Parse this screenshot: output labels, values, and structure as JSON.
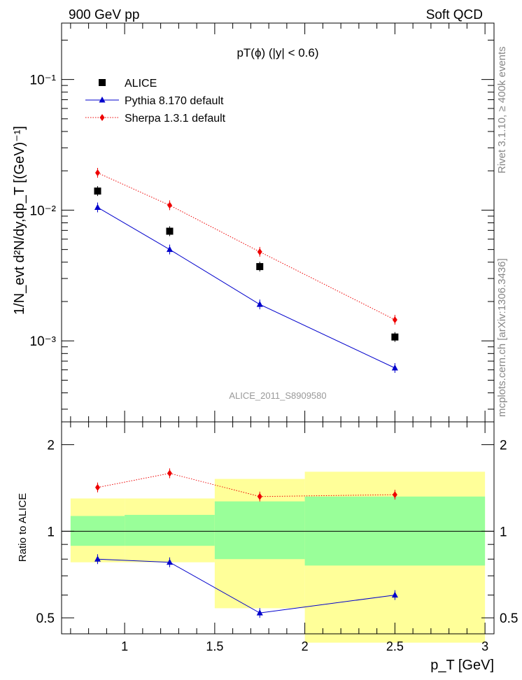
{
  "header": {
    "left": "900 GeV pp",
    "right": "Soft QCD"
  },
  "side_labels": {
    "upper": "Rivet 3.1.10, ≥ 400k events",
    "lower": "mcplots.cern.ch [arXiv:1306.3436]"
  },
  "watermark": "ALICE_2011_S8909580",
  "chart_data": [
    {
      "type": "line",
      "name": "main",
      "title": "pT(ϕ) (|y| < 0.6)",
      "ylabel": "1/N_evt d²N/dy,dp_T [(GeV)⁻¹]",
      "yscale": "log",
      "ylim": [
        0.00024,
        0.27
      ],
      "xlim": [
        0.65,
        3.05
      ],
      "y_ticks": [
        {
          "value": 0.001,
          "label": "10⁻³"
        },
        {
          "value": 0.01,
          "label": "10⁻²"
        },
        {
          "value": 0.1,
          "label": "10⁻¹"
        }
      ],
      "legend_position": "top-left",
      "series": [
        {
          "name": "ALICE",
          "marker": "square",
          "color": "#000000",
          "x": [
            0.85,
            1.25,
            1.75,
            2.5
          ],
          "y": [
            0.014,
            0.0069,
            0.0037,
            0.00107
          ]
        },
        {
          "name": "Pythia 8.170 default",
          "marker": "triangle",
          "color": "#0000cc",
          "line": "solid",
          "x": [
            0.85,
            1.25,
            1.75,
            2.5
          ],
          "y": [
            0.0105,
            0.005,
            0.0019,
            0.00062
          ]
        },
        {
          "name": "Sherpa 1.3.1 default",
          "marker": "diamond",
          "color": "#ee0000",
          "line": "dotted",
          "x": [
            0.85,
            1.25,
            1.75,
            2.5
          ],
          "y": [
            0.0193,
            0.0109,
            0.0048,
            0.00145
          ]
        }
      ]
    },
    {
      "type": "line",
      "name": "ratio",
      "ylabel": "Ratio to ALICE",
      "xlabel": "p_T [GeV]",
      "yscale": "log",
      "ylim": [
        0.44,
        2.4
      ],
      "xlim": [
        0.65,
        3.05
      ],
      "x_ticks": [
        {
          "value": 1,
          "label": "1"
        },
        {
          "value": 1.5,
          "label": "1.5"
        },
        {
          "value": 2,
          "label": "2"
        },
        {
          "value": 2.5,
          "label": "2.5"
        },
        {
          "value": 3,
          "label": "3"
        }
      ],
      "y_ticks": [
        {
          "value": 0.5,
          "label": "0.5"
        },
        {
          "value": 1,
          "label": "1"
        },
        {
          "value": 2,
          "label": "2"
        }
      ],
      "bands": [
        {
          "x0": 0.7,
          "x1": 1.0,
          "inner": [
            0.89,
            1.13
          ],
          "outer": [
            0.78,
            1.3
          ]
        },
        {
          "x0": 1.0,
          "x1": 1.5,
          "inner": [
            0.89,
            1.14
          ],
          "outer": [
            0.78,
            1.3
          ]
        },
        {
          "x0": 1.5,
          "x1": 2.0,
          "inner": [
            0.8,
            1.27
          ],
          "outer": [
            0.54,
            1.52
          ]
        },
        {
          "x0": 2.0,
          "x1": 3.0,
          "inner": [
            0.76,
            1.32
          ],
          "outer": [
            0.41,
            1.61
          ]
        }
      ],
      "series": [
        {
          "name": "Pythia 8.170 default",
          "marker": "triangle",
          "color": "#0000cc",
          "line": "solid",
          "x": [
            0.85,
            1.25,
            1.75,
            2.5
          ],
          "y": [
            0.8,
            0.78,
            0.52,
            0.6
          ]
        },
        {
          "name": "Sherpa 1.3.1 default",
          "marker": "diamond",
          "color": "#ee0000",
          "line": "dotted",
          "x": [
            0.85,
            1.25,
            1.75,
            2.5
          ],
          "y": [
            1.42,
            1.59,
            1.32,
            1.34
          ]
        }
      ]
    }
  ]
}
